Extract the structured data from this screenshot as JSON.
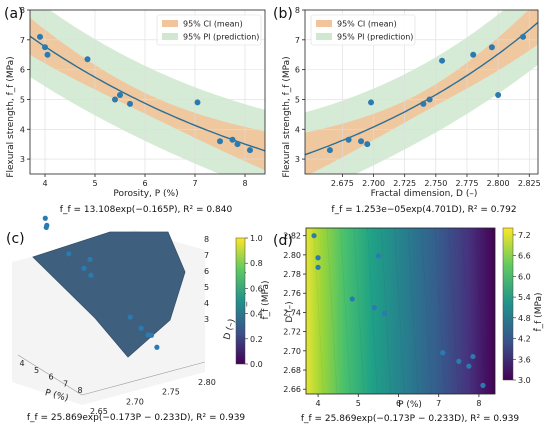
{
  "panel_labels": [
    "(a)",
    "(b)",
    "(c)",
    "(d)"
  ],
  "equations": {
    "a": "f_f = 13.108exp(−0.165P),  R² = 0.840",
    "b": "f_f = 1.253e−05exp(4.701D),  R² = 0.792",
    "c": "f_f = 25.869exp(−0.173P − 0.233D),  R² = 0.939",
    "d": "f_f = 25.869exp(−0.173P − 0.233D),  R² = 0.939"
  },
  "colors": {
    "ci": "#f2c49a",
    "pi": "#cfe8cf",
    "fit": "#2a6f97",
    "point": "#2b7bb0",
    "surface": "#3f5f7f"
  },
  "chart_data": [
    {
      "id": "a",
      "type": "scatter",
      "xlabel": "Porosity, P (%)",
      "ylabel": "Flexural strength, f_f (MPa)",
      "xlim": [
        3.7,
        8.4
      ],
      "ylim": [
        2.5,
        8.0
      ],
      "xticks": [
        4,
        5,
        6,
        7,
        8
      ],
      "yticks": [
        3,
        4,
        5,
        6,
        7,
        8
      ],
      "legend": {
        "placement": "top-right",
        "entries": [
          "95% CI (mean)",
          "95% PI (prediction)"
        ]
      },
      "grid": true,
      "points": {
        "x": [
          3.9,
          4.0,
          4.05,
          4.85,
          5.4,
          5.5,
          5.7,
          7.05,
          7.5,
          7.75,
          7.85,
          8.1
        ],
        "y": [
          7.1,
          6.75,
          6.5,
          6.35,
          5.0,
          5.15,
          4.85,
          4.9,
          3.6,
          3.65,
          3.5,
          3.3
        ]
      },
      "fit": {
        "form": "exp",
        "a": 13.108,
        "b": -0.165
      }
    },
    {
      "id": "b",
      "type": "scatter",
      "xlabel": "Fractal dimension, D (–)",
      "ylabel": "Flexural strength, f_f (MPa)",
      "xlim": [
        2.645,
        2.832
      ],
      "ylim": [
        2.5,
        8.0
      ],
      "xticks": [
        2.675,
        2.7,
        2.725,
        2.75,
        2.775,
        2.8,
        2.825
      ],
      "xticklabels": [
        "2.675",
        "2.700",
        "2.725",
        "2.750",
        "2.775",
        "2.800",
        "2.825"
      ],
      "yticks": [
        3,
        4,
        5,
        6,
        7,
        8
      ],
      "legend": {
        "placement": "top-left",
        "entries": [
          "95% CI (mean)",
          "95% PI (prediction)"
        ]
      },
      "grid": true,
      "points": {
        "x": [
          2.665,
          2.68,
          2.69,
          2.695,
          2.698,
          2.74,
          2.745,
          2.755,
          2.78,
          2.795,
          2.8,
          2.82
        ],
        "y": [
          3.3,
          3.65,
          3.6,
          3.5,
          4.9,
          4.85,
          5.0,
          6.3,
          6.5,
          6.75,
          5.15,
          7.1
        ]
      },
      "fit": {
        "form": "exp",
        "a": 1.253e-05,
        "b": 4.701
      }
    },
    {
      "id": "c",
      "type": "surface3d",
      "xlabel": "P (%)",
      "ylabel": "D (–)",
      "zlabel": "f_f (MPa)",
      "xticks": [
        4,
        5,
        6,
        7,
        8
      ],
      "yticks": [
        2.65,
        2.7,
        2.75,
        2.8
      ],
      "yticklabels": [
        "2.65",
        "2.70",
        "2.75",
        "2.80"
      ],
      "zticks": [
        3,
        4,
        5,
        6,
        7,
        8
      ],
      "colorbar": {
        "label": "f̂_f (MPa)",
        "ticks": [
          0.0,
          0.2,
          0.4,
          0.6,
          0.8,
          1.0
        ],
        "ticklabels": [
          "0.0",
          "0.2",
          "0.4",
          "0.6",
          "0.8",
          "1.0"
        ]
      }
    },
    {
      "id": "d",
      "type": "heatmap",
      "xlabel": "P (%)",
      "ylabel": "D (–)",
      "xlim": [
        3.7,
        8.4
      ],
      "ylim": [
        2.655,
        2.828
      ],
      "xticks": [
        4,
        5,
        6,
        7,
        8
      ],
      "yticks": [
        2.66,
        2.68,
        2.7,
        2.72,
        2.74,
        2.76,
        2.78,
        2.8,
        2.82
      ],
      "yticklabels": [
        "2.66",
        "2.68",
        "2.70",
        "2.72",
        "2.74",
        "2.76",
        "2.78",
        "2.80",
        "2.82"
      ],
      "points": {
        "x": [
          3.9,
          4.0,
          4.0,
          4.85,
          5.4,
          5.5,
          5.65,
          7.1,
          7.5,
          7.75,
          7.85,
          8.1
        ],
        "y": [
          2.82,
          2.797,
          2.787,
          2.754,
          2.745,
          2.799,
          2.739,
          2.698,
          2.689,
          2.684,
          2.694,
          2.664
        ]
      },
      "colorbar": {
        "label": "f̂_f (MPa)",
        "min": 3.0,
        "max": 7.4,
        "ticks": [
          3.0,
          3.6,
          4.2,
          4.8,
          5.4,
          6.0,
          6.6,
          7.2
        ],
        "ticklabels": [
          "3.0",
          "3.6",
          "4.2",
          "4.8",
          "5.4",
          "6.0",
          "6.6",
          "7.2"
        ]
      }
    }
  ]
}
